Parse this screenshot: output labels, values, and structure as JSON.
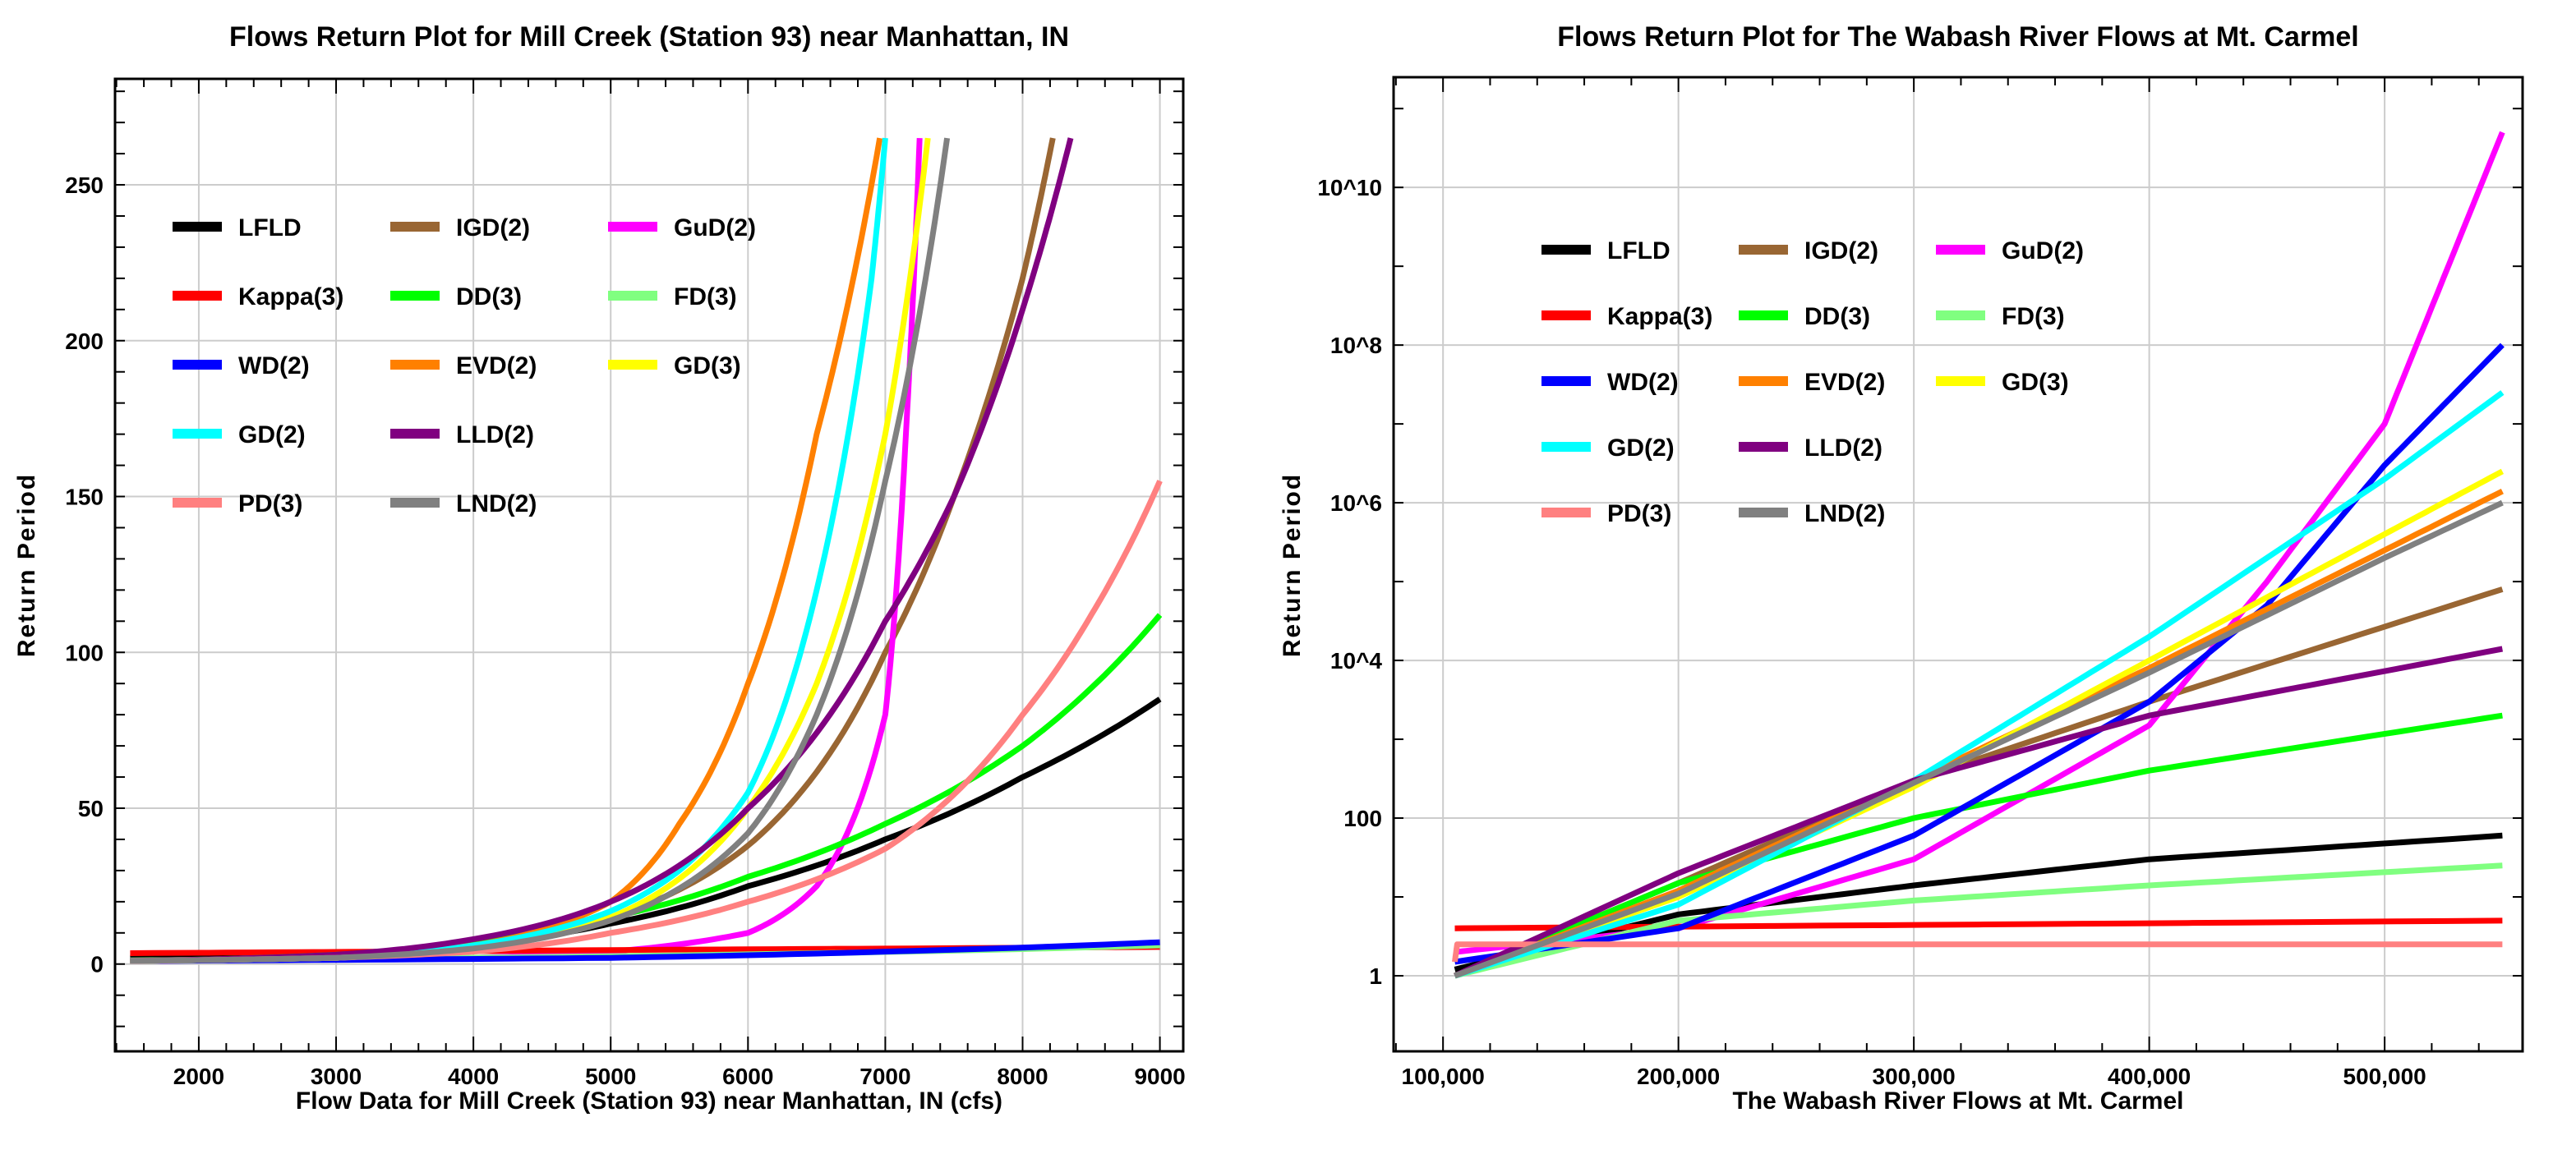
{
  "chart_data": [
    {
      "type": "line",
      "title": "Flows Return Plot  for Mill Creek (Station 93) near Manhattan, IN",
      "xlabel": "Flow Data for Mill Creek (Station 93) near Manhattan, IN (cfs)",
      "ylabel": "Return Period",
      "xscale": "linear",
      "yscale": "linear",
      "xlim": [
        1390,
        9170
      ],
      "ylim": [
        -28,
        284
      ],
      "xticks": [
        2000,
        3000,
        4000,
        5000,
        6000,
        7000,
        8000,
        9000
      ],
      "xtick_labels": [
        "2000",
        "3000",
        "4000",
        "5000",
        "6000",
        "7000",
        "8000",
        "9000"
      ],
      "yticks": [
        0,
        50,
        100,
        150,
        200,
        250
      ],
      "ytick_labels": [
        "0",
        "50",
        "100",
        "150",
        "200",
        "250"
      ],
      "grid": true,
      "legend_placement": "top-left",
      "series": [
        {
          "name": "LFLD",
          "color": "#000000",
          "x": [
            1500,
            3000,
            4000,
            5000,
            6000,
            7000,
            8000,
            9000
          ],
          "y": [
            2,
            3,
            6,
            13,
            25,
            40,
            60,
            85
          ]
        },
        {
          "name": "IGD(2)",
          "color": "#996633",
          "x": [
            1500,
            3000,
            4000,
            5000,
            6000,
            7000,
            7500,
            8000,
            8220
          ],
          "y": [
            1,
            2.5,
            6,
            15,
            38,
            100,
            150,
            220,
            265
          ]
        },
        {
          "name": "GuD(2)",
          "color": "#ff00ff",
          "x": [
            1500,
            4000,
            5000,
            6000,
            6500,
            7000,
            7150,
            7250
          ],
          "y": [
            1,
            2,
            4,
            10,
            25,
            80,
            170,
            265
          ]
        },
        {
          "name": "Kappa(3)",
          "color": "#ff0000",
          "x": [
            1500,
            5000,
            9000
          ],
          "y": [
            3.5,
            4.5,
            5.5
          ]
        },
        {
          "name": "DD(3)",
          "color": "#00ff00",
          "x": [
            1500,
            3000,
            4000,
            5000,
            6000,
            7000,
            8000,
            9000
          ],
          "y": [
            1,
            3,
            7,
            15,
            28,
            45,
            70,
            112
          ]
        },
        {
          "name": "FD(3)",
          "color": "#80ff80",
          "x": [
            1500,
            5000,
            9000
          ],
          "y": [
            1.2,
            2.5,
            6
          ]
        },
        {
          "name": "WD(2)",
          "color": "#0000ff",
          "x": [
            1500,
            5000,
            7000,
            9000
          ],
          "y": [
            1,
            2,
            4,
            7
          ]
        },
        {
          "name": "EVD(2)",
          "color": "#ff8000",
          "x": [
            1500,
            3000,
            4000,
            5000,
            5500,
            6000,
            6500,
            6960
          ],
          "y": [
            1,
            2.5,
            6,
            20,
            45,
            90,
            170,
            265
          ]
        },
        {
          "name": "GD(3)",
          "color": "#ffff00",
          "x": [
            1500,
            3000,
            4000,
            5000,
            6000,
            6500,
            7000,
            7310
          ],
          "y": [
            1,
            2,
            5,
            15,
            50,
            90,
            170,
            265
          ]
        },
        {
          "name": "GD(2)",
          "color": "#00ffff",
          "x": [
            1500,
            3000,
            4000,
            5000,
            5500,
            6000,
            6500,
            6900,
            7000
          ],
          "y": [
            1,
            2,
            6,
            17,
            30,
            55,
            120,
            220,
            265
          ]
        },
        {
          "name": "LLD(2)",
          "color": "#800080",
          "x": [
            1500,
            3000,
            4000,
            5000,
            6000,
            7000,
            7500,
            8000,
            8350
          ],
          "y": [
            1,
            3,
            8,
            20,
            50,
            110,
            150,
            210,
            265
          ]
        },
        {
          "name": "PD(3)",
          "color": "#ff8080",
          "x": [
            1500,
            3000,
            4000,
            5000,
            6000,
            7000,
            8000,
            8500,
            9000
          ],
          "y": [
            1,
            2,
            4,
            10,
            20,
            37,
            80,
            112,
            155
          ]
        },
        {
          "name": "LND(2)",
          "color": "#808080",
          "x": [
            1500,
            3000,
            4000,
            5000,
            6000,
            6500,
            7000,
            7450
          ],
          "y": [
            1,
            2,
            5,
            14,
            42,
            80,
            155,
            265
          ]
        }
      ]
    },
    {
      "type": "line",
      "title": "Flows Return Plot  for The Wabash River Flows at Mt. Carmel",
      "xlabel": "The Wabash River Flows at Mt. Carmel",
      "ylabel": "Return Period",
      "xscale": "linear",
      "yscale": "log",
      "xlim": [
        79000,
        558600
      ],
      "ylim": [
        0.11,
        250000000000.0
      ],
      "xticks": [
        100000,
        200000,
        300000,
        400000,
        500000
      ],
      "xtick_labels": [
        "100,000",
        "200,000",
        "300,000",
        "400,000",
        "500,000"
      ],
      "yticks": [
        1,
        100,
        10000,
        1000000,
        100000000,
        10000000000
      ],
      "ytick_labels": [
        "1",
        "100",
        "10^4",
        "10^6",
        "10^8",
        "10^10"
      ],
      "grid": true,
      "legend_placement": "top-left",
      "series": [
        {
          "name": "LFLD",
          "color": "#000000",
          "x": [
            105000,
            200000,
            300000,
            400000,
            550000
          ],
          "y": [
            1.2,
            6,
            14,
            30,
            60
          ]
        },
        {
          "name": "IGD(2)",
          "color": "#996633",
          "x": [
            105000,
            200000,
            300000,
            400000,
            550000
          ],
          "y": [
            1,
            15,
            300,
            3000,
            80000
          ]
        },
        {
          "name": "GuD(2)",
          "color": "#ff00ff",
          "x": [
            105000,
            200000,
            300000,
            400000,
            450000,
            500000,
            550000
          ],
          "y": [
            2,
            4,
            30,
            1500,
            100000,
            10000000,
            50000000000
          ]
        },
        {
          "name": "Kappa(3)",
          "color": "#ff0000",
          "x": [
            105000,
            550000
          ],
          "y": [
            4,
            5
          ]
        },
        {
          "name": "DD(3)",
          "color": "#00ff00",
          "x": [
            105000,
            200000,
            300000,
            400000,
            550000
          ],
          "y": [
            1,
            15,
            100,
            400,
            2000
          ]
        },
        {
          "name": "FD(3)",
          "color": "#80ff80",
          "x": [
            105000,
            200000,
            300000,
            400000,
            550000
          ],
          "y": [
            1,
            5,
            9,
            14,
            25
          ]
        },
        {
          "name": "WD(2)",
          "color": "#0000ff",
          "x": [
            105000,
            200000,
            300000,
            400000,
            450000,
            500000,
            550000
          ],
          "y": [
            1.5,
            4,
            60,
            3000,
            50000,
            3000000,
            100000000
          ]
        },
        {
          "name": "EVD(2)",
          "color": "#ff8000",
          "x": [
            105000,
            200000,
            300000,
            400000,
            500000,
            550000
          ],
          "y": [
            1,
            12,
            300,
            8000,
            250000,
            1400000
          ]
        },
        {
          "name": "GD(3)",
          "color": "#ffff00",
          "x": [
            105000,
            200000,
            300000,
            400000,
            500000,
            550000
          ],
          "y": [
            1,
            10,
            250,
            10000,
            400000,
            2500000
          ]
        },
        {
          "name": "GD(2)",
          "color": "#00ffff",
          "x": [
            105000,
            200000,
            300000,
            400000,
            500000,
            550000
          ],
          "y": [
            1,
            8,
            300,
            20000,
            2000000,
            25000000
          ]
        },
        {
          "name": "LLD(2)",
          "color": "#800080",
          "x": [
            105000,
            200000,
            300000,
            400000,
            550000
          ],
          "y": [
            1,
            20,
            300,
            2000,
            14000
          ]
        },
        {
          "name": "PD(3)",
          "color": "#ff8080",
          "x": [
            105000,
            106000,
            110000,
            550000
          ],
          "y": [
            1.5,
            2.5,
            2.5,
            2.5
          ]
        },
        {
          "name": "LND(2)",
          "color": "#808080",
          "x": [
            105000,
            200000,
            300000,
            400000,
            500000,
            550000
          ],
          "y": [
            1,
            11,
            280,
            7000,
            200000,
            1000000
          ]
        }
      ]
    }
  ]
}
